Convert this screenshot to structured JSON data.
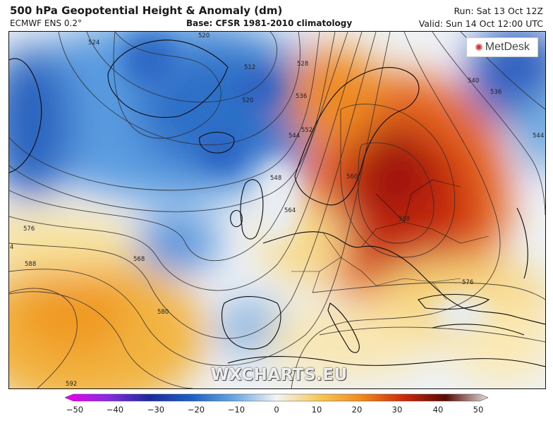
{
  "header": {
    "title": "500 hPa Geopotential Height & Anomaly (dm)",
    "model": "ECMWF ENS 0.2°",
    "base": "Base: CFSR 1981-2010 climatology",
    "run": "Run: Sat 13 Oct 12Z",
    "valid": "Valid: Sun 14 Oct 12:00 UTC"
  },
  "logo": {
    "text": "MetDesk"
  },
  "watermark": "WXCHARTS.EU",
  "contours": {
    "labels": [
      "520",
      "512",
      "524",
      "520",
      "528",
      "536",
      "544",
      "552",
      "548",
      "564",
      "540",
      "536",
      "544",
      "560",
      "588",
      "576",
      "576",
      "568",
      "588",
      "580",
      "592",
      "4"
    ]
  },
  "colorbar": {
    "ticks": [
      "−50",
      "−40",
      "−30",
      "−20",
      "−10",
      "0",
      "10",
      "20",
      "30",
      "40",
      "50"
    ],
    "colors": {
      "neg50": "#ee00ee",
      "neg40": "#8a2be2",
      "neg30": "#1d2a9c",
      "neg20": "#1f5fc4",
      "neg10": "#6aa7e0",
      "zero": "#f4f4f4",
      "pos10": "#f6c85a",
      "pos20": "#f08a1c",
      "pos30": "#cc2a0c",
      "pos40": "#5a0a05",
      "pos50": "#dcdcdc"
    }
  }
}
